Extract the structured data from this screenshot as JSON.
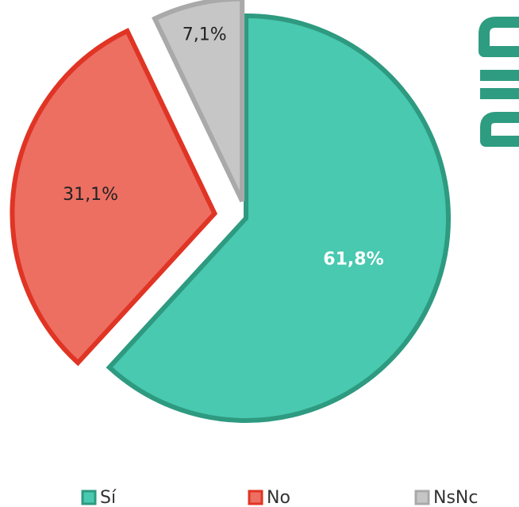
{
  "chart_data": {
    "type": "pie",
    "categories": [
      "Sí",
      "No",
      "NsNc"
    ],
    "values": [
      61.8,
      31.1,
      7.1
    ],
    "value_labels": [
      "61,8%",
      "31,1%",
      "7,1%"
    ],
    "colors": [
      "#48c9b0",
      "#ec6f62",
      "#c6c6c6"
    ],
    "edge_colors": [
      "#2e9a80",
      "#e03424",
      "#a9a9a9"
    ],
    "legend": "bottom"
  }
}
